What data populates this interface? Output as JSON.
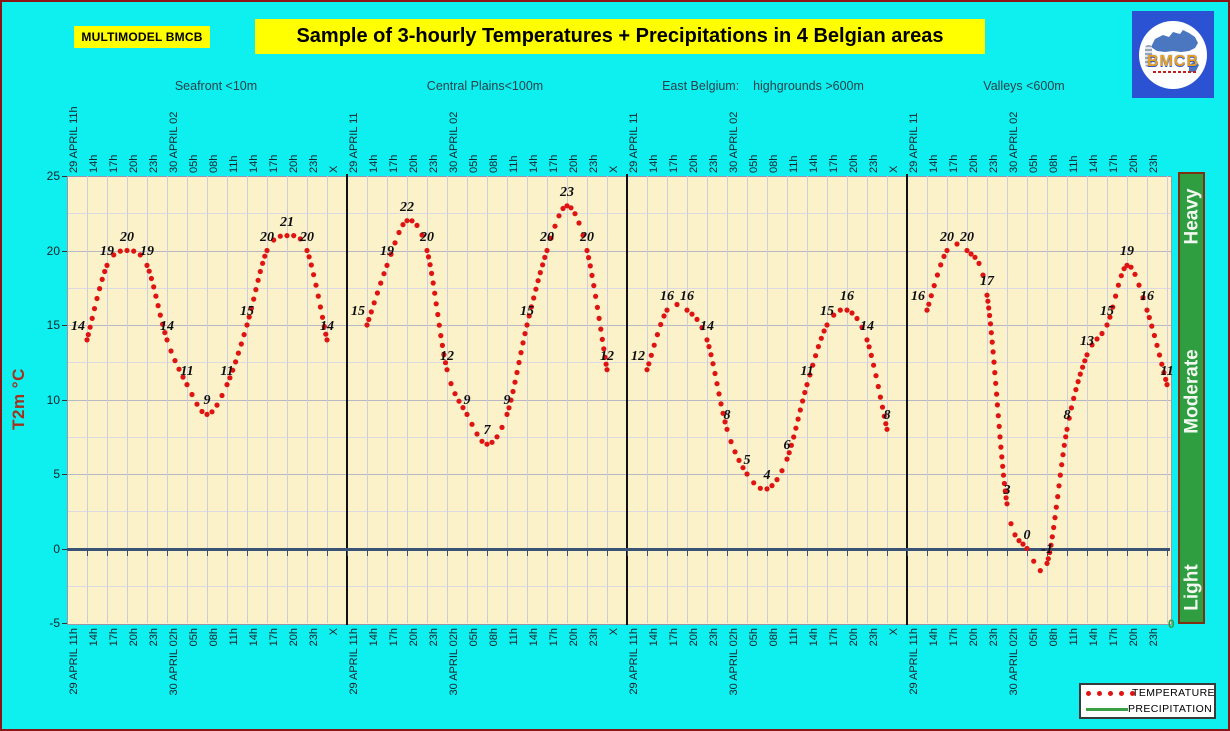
{
  "header": {
    "badge": "MULTIMODEL BMCB",
    "title": "Sample of 3-hourly Temperatures + Precipitations in 4 Belgian areas",
    "logo_text": "BMCB"
  },
  "y_axis": {
    "label": "T2m °C",
    "ticks": [
      25,
      20,
      15,
      10,
      5,
      0,
      -5
    ]
  },
  "panel_titles": [
    "Seafront <10m",
    "Central Plains<100m",
    "East Belgium:    highgrounds >600m",
    "Valleys <600m"
  ],
  "time_labels_bottom": [
    "29 APRIL 11h",
    "14h",
    "17h",
    "20h",
    "23h",
    "30 APRIL 02h",
    "05h",
    "08h",
    "11h",
    "14h",
    "17h",
    "20h",
    "23h"
  ],
  "time_labels_top_panel1": [
    "29 APRIL 11h",
    "14h",
    "17h",
    "20h",
    "23h",
    "30 APRIL 02",
    "05h",
    "08h",
    "11h",
    "14h",
    "17h",
    "20h",
    "23h"
  ],
  "time_labels_top_other": [
    "29 APRIL 11",
    "14h",
    "17h",
    "20h",
    "23h",
    "30 APRIL 02",
    "05h",
    "08h",
    "11h",
    "14h",
    "17h",
    "20h",
    "23h"
  ],
  "panel_end_label": "X",
  "precip_axis": {
    "labels": [
      "Heavy",
      "Moderate",
      "Light"
    ],
    "zero_label": "0"
  },
  "legend": {
    "temperature": "TEMPERATURE",
    "precipitation": "PRECIPITATION"
  },
  "colors": {
    "background": "#0EF0EF",
    "plot_background": "#FBF2C9",
    "temperature": "#E01313",
    "precipitation": "#3AA043",
    "zero_line": "#3A5276",
    "highlight": "#FFFF00",
    "precip_bar": "#2E9E40",
    "axis_title": "#A5301C"
  },
  "chart_data": {
    "type": "line",
    "title": "Sample of 3-hourly Temperatures + Precipitations in 4 Belgian areas",
    "ylabel": "T2m °C",
    "ylim": [
      -5,
      25
    ],
    "y_ticks": [
      25,
      20,
      15,
      10,
      5,
      0,
      -5
    ],
    "grid": true,
    "legend_position": "bottom-right",
    "legend_entries": [
      "TEMPERATURE",
      "PRECIPITATION"
    ],
    "x": [
      "29 APRIL 11h",
      "14h",
      "17h",
      "20h",
      "23h",
      "30 APRIL 02h",
      "05h",
      "08h",
      "11h",
      "14h",
      "17h",
      "20h",
      "23h"
    ],
    "series": [
      {
        "name": "Seafront <10m",
        "values": [
          14,
          19,
          20,
          19,
          14,
          11,
          9,
          11,
          15,
          20,
          21,
          20,
          14
        ]
      },
      {
        "name": "Central Plains<100m",
        "values": [
          15,
          19,
          22,
          20,
          12,
          9,
          7,
          9,
          15,
          20,
          23,
          20,
          12
        ]
      },
      {
        "name": "East Belgium: highgrounds >600m",
        "values": [
          12,
          16,
          16,
          14,
          8,
          5,
          4,
          6,
          11,
          15,
          16,
          14,
          8
        ]
      },
      {
        "name": "Valleys <600m",
        "values": [
          16,
          20,
          20,
          17,
          3,
          0,
          -1,
          8,
          13,
          15,
          19,
          16,
          11
        ]
      }
    ],
    "marker_style": "red dotted spline with italic value labels",
    "zero_axis_line": true,
    "precipitation_scale": [
      "Heavy",
      "Moderate",
      "Light"
    ]
  }
}
